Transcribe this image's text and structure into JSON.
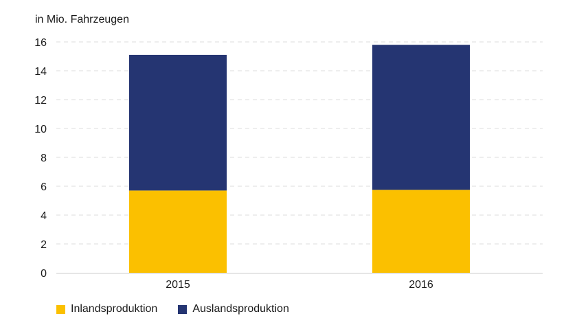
{
  "chart_data": {
    "type": "bar",
    "stacked": true,
    "ylabel": "in Mio. Fahrzeugen",
    "categories": [
      "2015",
      "2016"
    ],
    "series": [
      {
        "name": "Inlandsproduktion",
        "color": "#fbc000",
        "values": [
          5.7,
          5.75
        ]
      },
      {
        "name": "Auslandsproduktion",
        "color": "#253572",
        "values": [
          9.4,
          10.05
        ]
      }
    ],
    "ylim": [
      0,
      16
    ],
    "yticks": [
      0,
      2,
      4,
      6,
      8,
      10,
      12,
      14,
      16
    ],
    "grid": true,
    "legend_position": "bottom-left"
  }
}
